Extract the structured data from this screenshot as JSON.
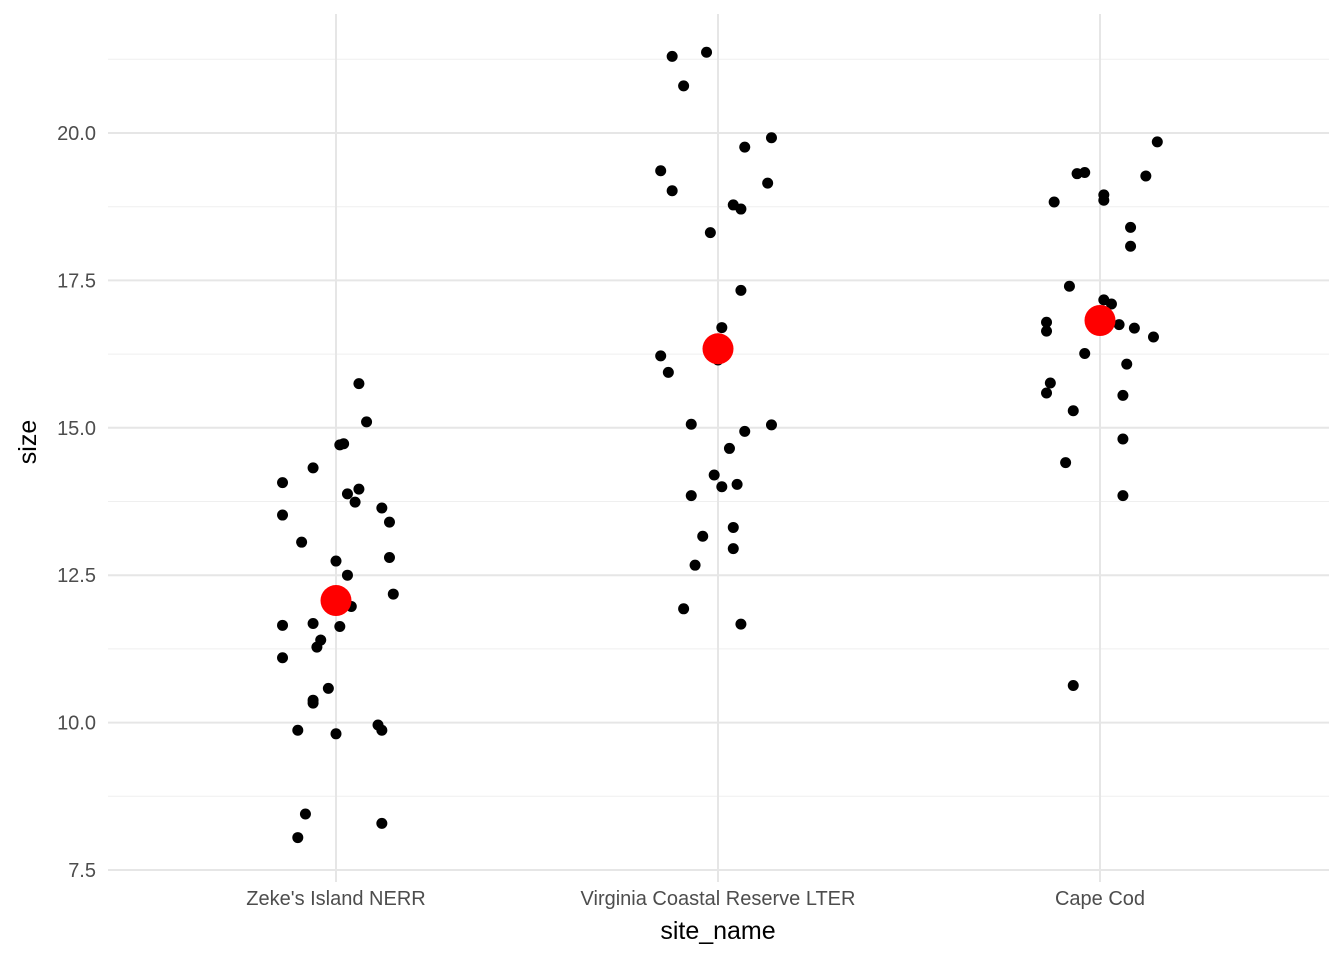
{
  "chart_data": {
    "type": "scatter",
    "title": "",
    "xlabel": "site_name",
    "ylabel": "size",
    "categories": [
      "Zeke's Island NERR",
      "Virginia Coastal Reserve LTER",
      "Cape Cod"
    ],
    "ylim": [
      7.3,
      21.6
    ],
    "yticks": [
      7.5,
      10.0,
      12.5,
      15.0,
      17.5,
      20.0
    ],
    "ytick_labels": [
      "7.5",
      "10.0",
      "12.5",
      "15.0",
      "17.5",
      "20.0"
    ],
    "grid": true,
    "legend": "none",
    "point_color": "#000000",
    "mean_color": "#ff0000",
    "points": [
      {
        "category": 0,
        "jitter": -0.14,
        "y": 14.07
      },
      {
        "category": 0,
        "jitter": -0.14,
        "y": 13.52
      },
      {
        "category": 0,
        "jitter": -0.09,
        "y": 13.06
      },
      {
        "category": 0,
        "jitter": -0.06,
        "y": 14.32
      },
      {
        "category": 0,
        "jitter": 0.01,
        "y": 14.71
      },
      {
        "category": 0,
        "jitter": 0.02,
        "y": 14.73
      },
      {
        "category": 0,
        "jitter": 0.06,
        "y": 15.75
      },
      {
        "category": 0,
        "jitter": 0.08,
        "y": 15.1
      },
      {
        "category": 0,
        "jitter": 0.03,
        "y": 13.88
      },
      {
        "category": 0,
        "jitter": 0.06,
        "y": 13.96
      },
      {
        "category": 0,
        "jitter": 0.05,
        "y": 13.74
      },
      {
        "category": 0,
        "jitter": 0.12,
        "y": 13.64
      },
      {
        "category": 0,
        "jitter": 0.14,
        "y": 13.4
      },
      {
        "category": 0,
        "jitter": 0.0,
        "y": 12.74
      },
      {
        "category": 0,
        "jitter": 0.03,
        "y": 12.5
      },
      {
        "category": 0,
        "jitter": 0.14,
        "y": 12.8
      },
      {
        "category": 0,
        "jitter": 0.15,
        "y": 12.18
      },
      {
        "category": 0,
        "jitter": 0.04,
        "y": 11.97
      },
      {
        "category": 0,
        "jitter": -0.14,
        "y": 11.65
      },
      {
        "category": 0,
        "jitter": -0.06,
        "y": 11.68
      },
      {
        "category": 0,
        "jitter": 0.01,
        "y": 11.63
      },
      {
        "category": 0,
        "jitter": -0.04,
        "y": 11.4
      },
      {
        "category": 0,
        "jitter": -0.05,
        "y": 11.28
      },
      {
        "category": 0,
        "jitter": -0.14,
        "y": 11.1
      },
      {
        "category": 0,
        "jitter": -0.02,
        "y": 10.58
      },
      {
        "category": 0,
        "jitter": -0.06,
        "y": 10.38
      },
      {
        "category": 0,
        "jitter": -0.06,
        "y": 10.33
      },
      {
        "category": 0,
        "jitter": -0.1,
        "y": 9.87
      },
      {
        "category": 0,
        "jitter": 0.0,
        "y": 9.81
      },
      {
        "category": 0,
        "jitter": 0.11,
        "y": 9.96
      },
      {
        "category": 0,
        "jitter": 0.12,
        "y": 9.87
      },
      {
        "category": 0,
        "jitter": -0.08,
        "y": 8.45
      },
      {
        "category": 0,
        "jitter": -0.1,
        "y": 8.05
      },
      {
        "category": 0,
        "jitter": 0.12,
        "y": 8.29
      },
      {
        "category": 1,
        "jitter": -0.12,
        "y": 21.3
      },
      {
        "category": 1,
        "jitter": -0.03,
        "y": 21.37
      },
      {
        "category": 1,
        "jitter": -0.09,
        "y": 20.8
      },
      {
        "category": 1,
        "jitter": -0.15,
        "y": 19.36
      },
      {
        "category": 1,
        "jitter": -0.12,
        "y": 19.02
      },
      {
        "category": 1,
        "jitter": 0.07,
        "y": 19.76
      },
      {
        "category": 1,
        "jitter": 0.14,
        "y": 19.92
      },
      {
        "category": 1,
        "jitter": 0.13,
        "y": 19.15
      },
      {
        "category": 1,
        "jitter": 0.04,
        "y": 18.78
      },
      {
        "category": 1,
        "jitter": 0.06,
        "y": 18.71
      },
      {
        "category": 1,
        "jitter": -0.02,
        "y": 18.31
      },
      {
        "category": 1,
        "jitter": 0.06,
        "y": 17.33
      },
      {
        "category": 1,
        "jitter": 0.01,
        "y": 16.7
      },
      {
        "category": 1,
        "jitter": -0.15,
        "y": 16.22
      },
      {
        "category": 1,
        "jitter": -0.13,
        "y": 15.94
      },
      {
        "category": 1,
        "jitter": 0.0,
        "y": 16.15
      },
      {
        "category": 1,
        "jitter": -0.07,
        "y": 15.06
      },
      {
        "category": 1,
        "jitter": 0.14,
        "y": 15.05
      },
      {
        "category": 1,
        "jitter": 0.07,
        "y": 14.94
      },
      {
        "category": 1,
        "jitter": 0.03,
        "y": 14.65
      },
      {
        "category": 1,
        "jitter": -0.01,
        "y": 14.2
      },
      {
        "category": 1,
        "jitter": 0.01,
        "y": 14.0
      },
      {
        "category": 1,
        "jitter": 0.05,
        "y": 14.04
      },
      {
        "category": 1,
        "jitter": -0.07,
        "y": 13.85
      },
      {
        "category": 1,
        "jitter": 0.04,
        "y": 13.31
      },
      {
        "category": 1,
        "jitter": -0.04,
        "y": 13.16
      },
      {
        "category": 1,
        "jitter": 0.04,
        "y": 12.95
      },
      {
        "category": 1,
        "jitter": -0.06,
        "y": 12.67
      },
      {
        "category": 1,
        "jitter": -0.09,
        "y": 11.93
      },
      {
        "category": 1,
        "jitter": 0.06,
        "y": 11.67
      },
      {
        "category": 2,
        "jitter": -0.06,
        "y": 19.31
      },
      {
        "category": 2,
        "jitter": -0.04,
        "y": 19.33
      },
      {
        "category": 2,
        "jitter": 0.15,
        "y": 19.85
      },
      {
        "category": 2,
        "jitter": 0.12,
        "y": 19.27
      },
      {
        "category": 2,
        "jitter": -0.12,
        "y": 18.83
      },
      {
        "category": 2,
        "jitter": 0.01,
        "y": 18.95
      },
      {
        "category": 2,
        "jitter": 0.01,
        "y": 18.86
      },
      {
        "category": 2,
        "jitter": 0.08,
        "y": 18.4
      },
      {
        "category": 2,
        "jitter": 0.08,
        "y": 18.08
      },
      {
        "category": 2,
        "jitter": -0.08,
        "y": 17.4
      },
      {
        "category": 2,
        "jitter": 0.01,
        "y": 17.17
      },
      {
        "category": 2,
        "jitter": 0.03,
        "y": 17.1
      },
      {
        "category": 2,
        "jitter": -0.14,
        "y": 16.79
      },
      {
        "category": 2,
        "jitter": -0.14,
        "y": 16.64
      },
      {
        "category": 2,
        "jitter": 0.05,
        "y": 16.75
      },
      {
        "category": 2,
        "jitter": 0.09,
        "y": 16.69
      },
      {
        "category": 2,
        "jitter": 0.14,
        "y": 16.54
      },
      {
        "category": 2,
        "jitter": -0.04,
        "y": 16.26
      },
      {
        "category": 2,
        "jitter": 0.07,
        "y": 16.08
      },
      {
        "category": 2,
        "jitter": -0.13,
        "y": 15.76
      },
      {
        "category": 2,
        "jitter": -0.14,
        "y": 15.59
      },
      {
        "category": 2,
        "jitter": 0.06,
        "y": 15.55
      },
      {
        "category": 2,
        "jitter": -0.07,
        "y": 15.29
      },
      {
        "category": 2,
        "jitter": 0.06,
        "y": 14.81
      },
      {
        "category": 2,
        "jitter": -0.09,
        "y": 14.41
      },
      {
        "category": 2,
        "jitter": 0.06,
        "y": 13.85
      },
      {
        "category": 2,
        "jitter": -0.07,
        "y": 10.63
      }
    ],
    "means": [
      {
        "category": 0,
        "y": 12.07
      },
      {
        "category": 1,
        "y": 16.34
      },
      {
        "category": 2,
        "y": 16.82
      }
    ]
  }
}
